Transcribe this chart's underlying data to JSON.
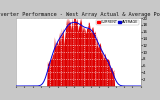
{
  "title": "Solar PV/Inverter Performance - West Array Actual & Average Power Output",
  "title_fontsize": 3.8,
  "bg_color": "#c8c8c8",
  "plot_bg_color": "#ffffff",
  "bar_color": "#dd0000",
  "avg_line_color": "#0000dd",
  "grid_color": "#aaaaaa",
  "grid_style": ":",
  "ylabel_right": "kW",
  "tick_fontsize": 2.8,
  "ylim": [
    0,
    20
  ],
  "ytick_vals": [
    2,
    4,
    6,
    8,
    10,
    12,
    14,
    16,
    18,
    20
  ],
  "num_bars": 144,
  "legend_labels": [
    "CURRENT",
    "AVERAGE"
  ],
  "legend_colors": [
    "#ff0000",
    "#0000cc"
  ],
  "spine_color": "#888888"
}
